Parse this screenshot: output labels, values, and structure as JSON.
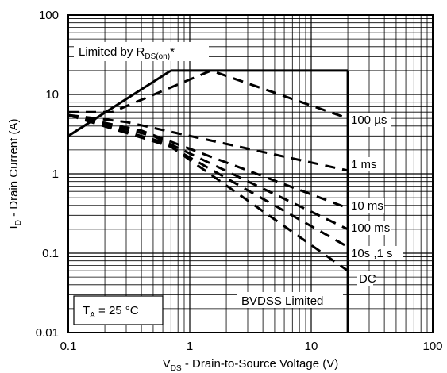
{
  "chart_data": {
    "type": "line",
    "title": "",
    "x_scale": "log",
    "y_scale": "log",
    "xlim": [
      0.1,
      100
    ],
    "ylim": [
      0.01,
      100
    ],
    "grid": true,
    "xticks": [
      "0.1",
      "1",
      "10",
      "100"
    ],
    "yticks": [
      "0.01",
      "0.1",
      "1",
      "10",
      "100"
    ],
    "xlabel": {
      "main": "V",
      "sub": "DS",
      "rest": " - Drain-to-Source Voltage (V)"
    },
    "ylabel": {
      "main": "I",
      "sub": "D",
      "rest": " - Drain Current (A)"
    },
    "annotations": {
      "rdson": {
        "main": "Limited by R",
        "sub": "DS(on)",
        "rest": "*"
      },
      "ta": {
        "main": "T",
        "sub": "A",
        "rest": " = 25 °C"
      },
      "bvdss": "BVDSS Limited"
    },
    "limit_lines": [
      {
        "name": "rds-on-limit",
        "style": "solid",
        "points": [
          [
            0.1,
            3.0
          ],
          [
            0.7,
            20
          ]
        ]
      },
      {
        "name": "current-limit",
        "style": "solid",
        "points": [
          [
            0.7,
            20
          ],
          [
            20,
            20
          ]
        ]
      },
      {
        "name": "bvdss-limit",
        "style": "solid",
        "points": [
          [
            20,
            20
          ],
          [
            20,
            0.01
          ]
        ]
      }
    ],
    "series": [
      {
        "name": "100 µs",
        "style": "dashed",
        "points": [
          [
            0.1,
            6.0
          ],
          [
            0.23,
            6.0
          ],
          [
            1.5,
            20
          ],
          [
            20,
            5.0
          ]
        ]
      },
      {
        "name": "1 ms",
        "style": "dashed",
        "points": [
          [
            0.1,
            5.5
          ],
          [
            0.3,
            4.5
          ],
          [
            20,
            1.1
          ]
        ]
      },
      {
        "name": "10 ms",
        "style": "dashed",
        "points": [
          [
            0.1,
            5.5
          ],
          [
            0.4,
            3.5
          ],
          [
            20,
            0.37
          ]
        ]
      },
      {
        "name": "100 ms",
        "style": "dashed",
        "points": [
          [
            0.1,
            5.5
          ],
          [
            0.5,
            3.0
          ],
          [
            20,
            0.2
          ]
        ]
      },
      {
        "name": "10s ,1 s",
        "style": "dashed",
        "points": [
          [
            0.1,
            5.5
          ],
          [
            0.6,
            2.5
          ],
          [
            20,
            0.12
          ]
        ]
      },
      {
        "name": "DC",
        "style": "dashed",
        "points": [
          [
            0.1,
            5.5
          ],
          [
            0.7,
            2.2
          ],
          [
            20,
            0.06
          ]
        ]
      }
    ]
  }
}
